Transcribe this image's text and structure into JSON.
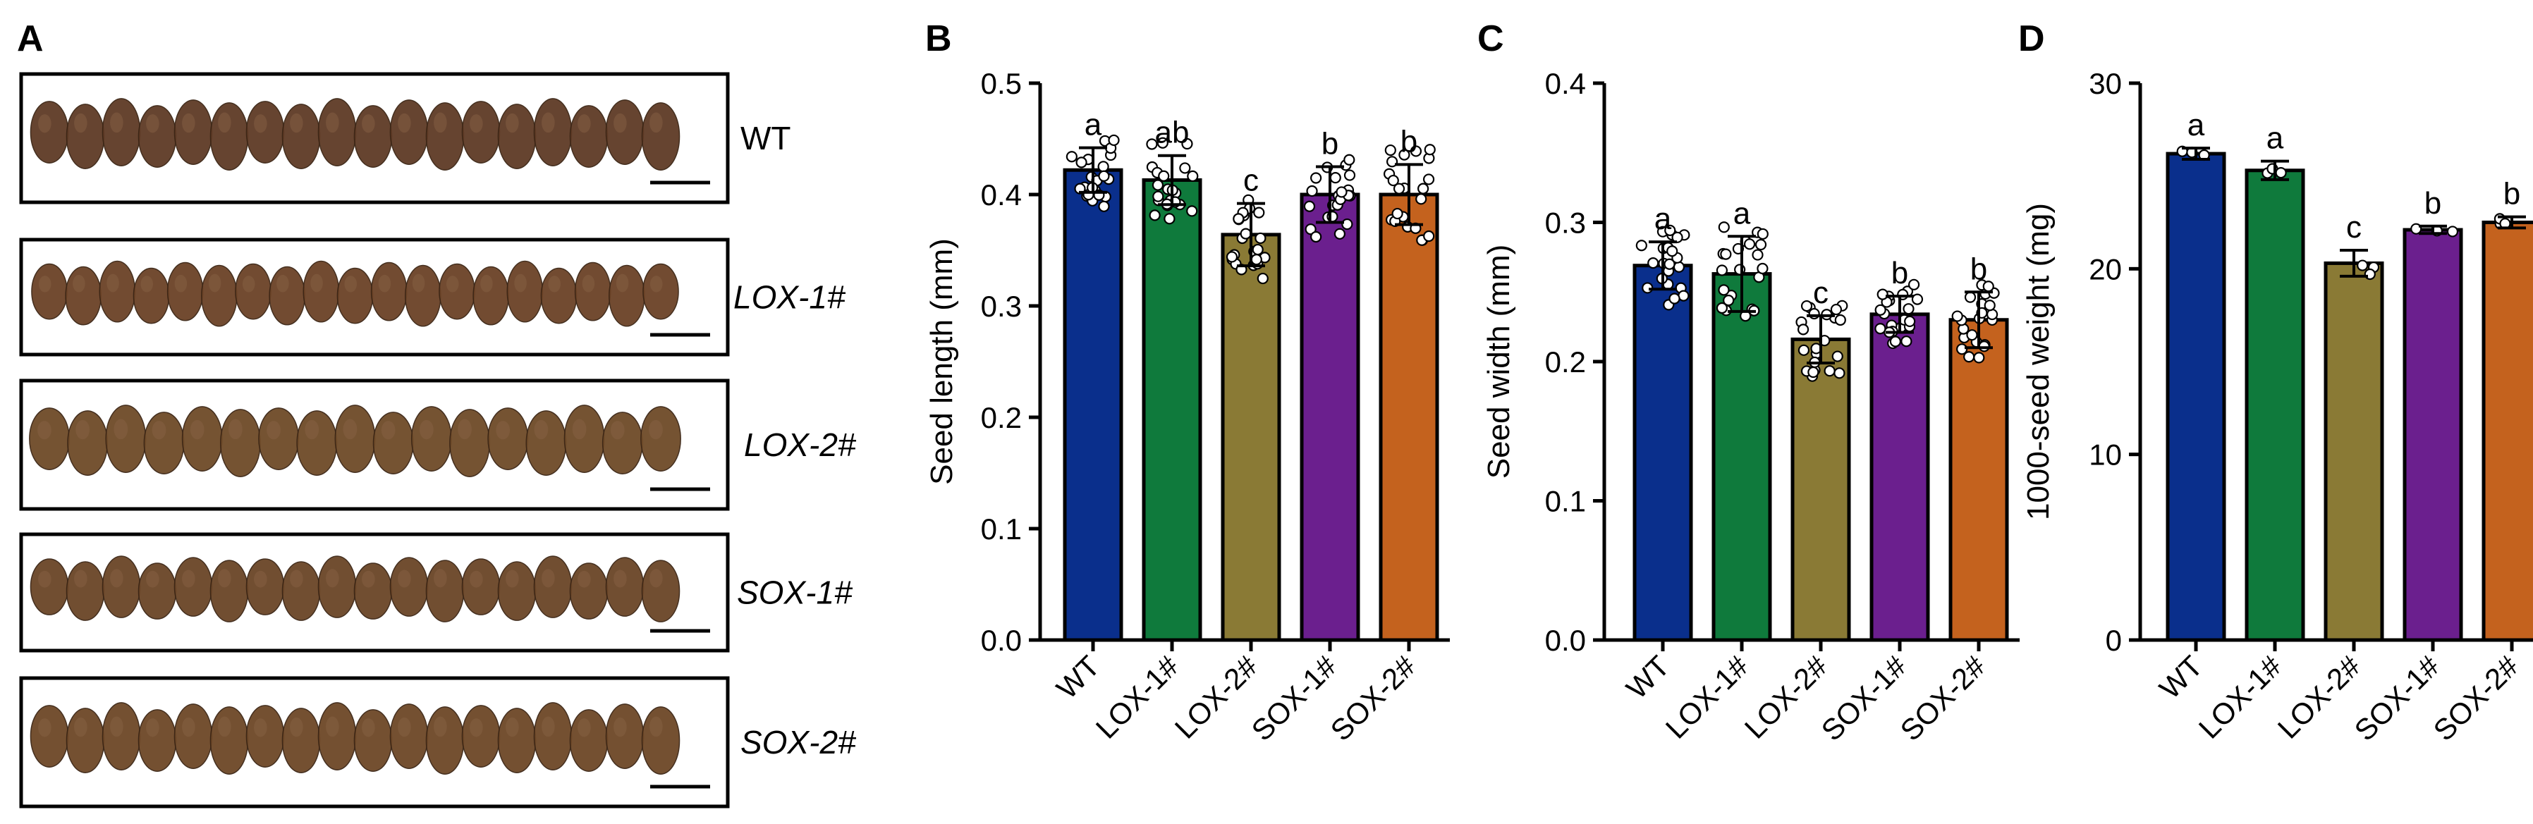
{
  "panel_a": {
    "letter": "A",
    "rows": [
      {
        "label": "WT",
        "italic": false,
        "seed_count": 18,
        "seed_color": "#5e3a25"
      },
      {
        "label": "LOX-1#",
        "italic": true,
        "seed_count": 19,
        "seed_color": "#6b4226"
      },
      {
        "label": "LOX-2#",
        "italic": true,
        "seed_count": 17,
        "seed_color": "#6e4a28"
      },
      {
        "label": "SOX-1#",
        "italic": true,
        "seed_count": 18,
        "seed_color": "#6a4527"
      },
      {
        "label": "SOX-2#",
        "italic": true,
        "seed_count": 18,
        "seed_color": "#6d4727"
      }
    ]
  },
  "chart_data": [
    {
      "panel": "B",
      "type": "bar",
      "title": "",
      "xlabel": "",
      "ylabel": "Seed length (mm)",
      "ylim": [
        0,
        0.5
      ],
      "yticks": [
        "0.0",
        "0.1",
        "0.2",
        "0.3",
        "0.4",
        "0.5"
      ],
      "categories": [
        "WT",
        "LOX-1#",
        "LOX-2#",
        "SOX-1#",
        "SOX-2#"
      ],
      "values": [
        0.422,
        0.413,
        0.364,
        0.4,
        0.4
      ],
      "errors": [
        0.02,
        0.022,
        0.028,
        0.025,
        0.027
      ],
      "letters": [
        "a",
        "ab",
        "c",
        "b",
        "b"
      ],
      "colors": [
        "#0a2f8c",
        "#0f7a3c",
        "#8a7a35",
        "#6b1f8e",
        "#c4621e"
      ],
      "points_per_bar": 22,
      "point_spread": [
        0.035,
        0.035,
        0.04,
        0.04,
        0.045
      ]
    },
    {
      "panel": "C",
      "type": "bar",
      "title": "",
      "xlabel": "",
      "ylabel": "Seed width (mm)",
      "ylim": [
        0,
        0.4
      ],
      "yticks": [
        "0.0",
        "0.1",
        "0.2",
        "0.3",
        "0.4"
      ],
      "categories": [
        "WT",
        "LOX-1#",
        "LOX-2#",
        "SOX-1#",
        "SOX-2#"
      ],
      "values": [
        0.269,
        0.263,
        0.216,
        0.234,
        0.23
      ],
      "errors": [
        0.017,
        0.027,
        0.017,
        0.013,
        0.02
      ],
      "letters": [
        "a",
        "a",
        "c",
        "b",
        "b"
      ],
      "colors": [
        "#0a2f8c",
        "#0f7a3c",
        "#8a7a35",
        "#6b1f8e",
        "#c4621e"
      ],
      "points_per_bar": 22,
      "point_spread": [
        0.03,
        0.035,
        0.028,
        0.022,
        0.03
      ]
    },
    {
      "panel": "D",
      "type": "bar",
      "title": "",
      "xlabel": "",
      "ylabel": "1000-seed weight (mg)",
      "ylim": [
        0,
        30
      ],
      "yticks": [
        "0",
        "10",
        "20",
        "30"
      ],
      "categories": [
        "WT",
        "LOX-1#",
        "LOX-2#",
        "SOX-1#",
        "SOX-2#"
      ],
      "values": [
        26.2,
        25.3,
        20.3,
        22.1,
        22.5
      ],
      "errors": [
        0.3,
        0.5,
        0.7,
        0.2,
        0.3
      ],
      "letters": [
        "a",
        "a",
        "c",
        "b",
        "b"
      ],
      "colors": [
        "#0a2f8c",
        "#0f7a3c",
        "#8a7a35",
        "#6b1f8e",
        "#c4621e"
      ],
      "points_per_bar": 3,
      "point_spread": [
        0.2,
        0.4,
        0.6,
        0.15,
        0.2
      ]
    }
  ]
}
